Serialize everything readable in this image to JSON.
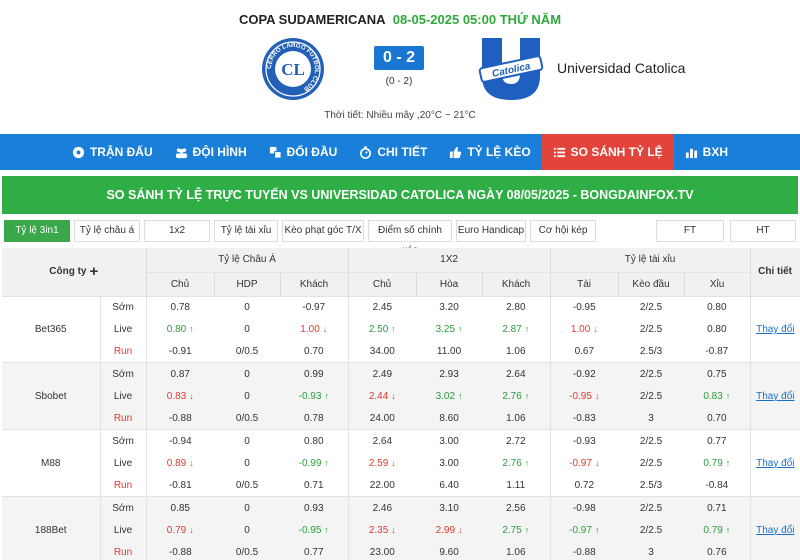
{
  "match": {
    "league": "COPA SUDAMERICANA",
    "datetime": "08-05-2025 05:00 THỨ NĂM",
    "score": "0 - 2",
    "half_score": "(0 - 2)",
    "home_crest_text": "CERRO LARGO FÚTBOL CLUB",
    "home_crest_initials": "CL",
    "away_crest_text": "Catolica",
    "away_name": "Universidad Catolica",
    "weather": "Thời tiết: Nhiều mây ,20°C ~ 21°C"
  },
  "tabs": [
    {
      "label": "TRẬN ĐẤU",
      "icon": "soccer-ball-icon",
      "active": false
    },
    {
      "label": "ĐỘI HÌNH",
      "icon": "team-icon",
      "active": false
    },
    {
      "label": "ĐỐI ĐẦU",
      "icon": "versus-icon",
      "active": false
    },
    {
      "label": "CHI TIẾT",
      "icon": "stopwatch-icon",
      "active": false
    },
    {
      "label": "TỶ LỆ KÈO",
      "icon": "thumb-up-icon",
      "active": false
    },
    {
      "label": "SO SÁNH TỶ LỆ",
      "icon": "compare-list-icon",
      "active": true
    },
    {
      "label": "BXH",
      "icon": "bar-chart-icon",
      "active": false
    }
  ],
  "banner": "SO SÁNH TỶ LỆ TRỰC TUYẾN VS UNIVERSIDAD CATOLICA NGÀY 08/05/2025 - BONGDAINFOX.TV",
  "filters": [
    {
      "label": "Tỷ lệ 3in1",
      "active": true
    },
    {
      "label": "Tỷ lệ châu á",
      "active": false
    },
    {
      "label": "1x2",
      "active": false
    },
    {
      "label": "Tỷ lệ tài xỉu",
      "active": false
    },
    {
      "label": "Kèo phạt góc T/X",
      "active": false
    },
    {
      "label": "Điểm số chính xác",
      "active": false
    },
    {
      "label": "Euro Handicap",
      "active": false
    },
    {
      "label": "Cơ hội kép",
      "active": false
    },
    {
      "label": "FT",
      "active": false
    },
    {
      "label": "HT",
      "active": false
    }
  ],
  "table": {
    "company_header": "Công ty",
    "plus_symbol": "+",
    "detail_header": "Chi tiết",
    "groups": [
      "Tỷ lệ Châu Á",
      "1X2",
      "Tỷ lệ tài xỉu"
    ],
    "subheaders": [
      "Chủ",
      "HDP",
      "Khách",
      "Chủ",
      "Hòa",
      "Khách",
      "Tài",
      "Kèo đầu",
      "Xỉu"
    ],
    "change_label": "Thay đổi",
    "bookmakers": [
      {
        "name": "Bet365",
        "rows": [
          {
            "type": "Sớm",
            "cells": [
              [
                "0.78",
                ""
              ],
              [
                "0",
                ""
              ],
              [
                "-0.97",
                ""
              ],
              [
                "2.45",
                ""
              ],
              [
                "3.20",
                ""
              ],
              [
                "2.80",
                ""
              ],
              [
                "-0.95",
                ""
              ],
              [
                "2/2.5",
                ""
              ],
              [
                "0.80",
                ""
              ]
            ]
          },
          {
            "type": "Live",
            "cells": [
              [
                "0.80",
                "up"
              ],
              [
                "0",
                ""
              ],
              [
                "1.00",
                "down"
              ],
              [
                "2.50",
                "up"
              ],
              [
                "3.25",
                "up"
              ],
              [
                "2.87",
                "up"
              ],
              [
                "1.00",
                "down"
              ],
              [
                "2/2.5",
                ""
              ],
              [
                "0.80",
                ""
              ]
            ]
          },
          {
            "type": "Run",
            "cells": [
              [
                "-0.91",
                ""
              ],
              [
                "0/0.5",
                ""
              ],
              [
                "0.70",
                ""
              ],
              [
                "34.00",
                ""
              ],
              [
                "11.00",
                ""
              ],
              [
                "1.06",
                ""
              ],
              [
                "0.67",
                ""
              ],
              [
                "2.5/3",
                ""
              ],
              [
                "-0.87",
                ""
              ]
            ]
          }
        ]
      },
      {
        "name": "Sbobet",
        "rows": [
          {
            "type": "Sớm",
            "cells": [
              [
                "0.87",
                ""
              ],
              [
                "0",
                ""
              ],
              [
                "0.99",
                ""
              ],
              [
                "2.49",
                ""
              ],
              [
                "2.93",
                ""
              ],
              [
                "2.64",
                ""
              ],
              [
                "-0.92",
                ""
              ],
              [
                "2/2.5",
                ""
              ],
              [
                "0.75",
                ""
              ]
            ]
          },
          {
            "type": "Live",
            "cells": [
              [
                "0.83",
                "down"
              ],
              [
                "0",
                ""
              ],
              [
                "-0.93",
                "up"
              ],
              [
                "2.44",
                "down"
              ],
              [
                "3.02",
                "up"
              ],
              [
                "2.76",
                "up"
              ],
              [
                "-0.95",
                "down"
              ],
              [
                "2/2.5",
                ""
              ],
              [
                "0.83",
                "up"
              ]
            ]
          },
          {
            "type": "Run",
            "cells": [
              [
                "-0.88",
                ""
              ],
              [
                "0/0.5",
                ""
              ],
              [
                "0.78",
                ""
              ],
              [
                "24.00",
                ""
              ],
              [
                "8.60",
                ""
              ],
              [
                "1.06",
                ""
              ],
              [
                "-0.83",
                ""
              ],
              [
                "3",
                ""
              ],
              [
                "0.70",
                ""
              ]
            ]
          }
        ]
      },
      {
        "name": "M88",
        "rows": [
          {
            "type": "Sớm",
            "cells": [
              [
                "-0.94",
                ""
              ],
              [
                "0",
                ""
              ],
              [
                "0.80",
                ""
              ],
              [
                "2.64",
                ""
              ],
              [
                "3.00",
                ""
              ],
              [
                "2.72",
                ""
              ],
              [
                "-0.93",
                ""
              ],
              [
                "2/2.5",
                ""
              ],
              [
                "0.77",
                ""
              ]
            ]
          },
          {
            "type": "Live",
            "cells": [
              [
                "0.89",
                "down"
              ],
              [
                "0",
                ""
              ],
              [
                "-0.99",
                "up"
              ],
              [
                "2.59",
                "down"
              ],
              [
                "3.00",
                ""
              ],
              [
                "2.76",
                "up"
              ],
              [
                "-0.97",
                "down"
              ],
              [
                "2/2.5",
                ""
              ],
              [
                "0.79",
                "up"
              ]
            ]
          },
          {
            "type": "Run",
            "cells": [
              [
                "-0.81",
                ""
              ],
              [
                "0/0.5",
                ""
              ],
              [
                "0.71",
                ""
              ],
              [
                "22.00",
                ""
              ],
              [
                "6.40",
                ""
              ],
              [
                "1.11",
                ""
              ],
              [
                "0.72",
                ""
              ],
              [
                "2.5/3",
                ""
              ],
              [
                "-0.84",
                ""
              ]
            ]
          }
        ]
      },
      {
        "name": "188Bet",
        "rows": [
          {
            "type": "Sớm",
            "cells": [
              [
                "0.85",
                ""
              ],
              [
                "0",
                ""
              ],
              [
                "0.93",
                ""
              ],
              [
                "2.46",
                ""
              ],
              [
                "3.10",
                ""
              ],
              [
                "2.56",
                ""
              ],
              [
                "-0.98",
                ""
              ],
              [
                "2/2.5",
                ""
              ],
              [
                "0.71",
                ""
              ]
            ]
          },
          {
            "type": "Live",
            "cells": [
              [
                "0.79",
                "down"
              ],
              [
                "0",
                ""
              ],
              [
                "-0.95",
                "up"
              ],
              [
                "2.35",
                "down"
              ],
              [
                "2.99",
                "down"
              ],
              [
                "2.75",
                "up"
              ],
              [
                "-0.97",
                "up"
              ],
              [
                "2/2.5",
                ""
              ],
              [
                "0.79",
                "up"
              ]
            ]
          },
          {
            "type": "Run",
            "cells": [
              [
                "-0.88",
                ""
              ],
              [
                "0/0.5",
                ""
              ],
              [
                "0.77",
                ""
              ],
              [
                "23.00",
                ""
              ],
              [
                "9.60",
                ""
              ],
              [
                "1.06",
                ""
              ],
              [
                "-0.88",
                ""
              ],
              [
                "3",
                ""
              ],
              [
                "0.76",
                ""
              ]
            ]
          }
        ]
      }
    ]
  },
  "colors": {
    "tab_bar": "#1a7fd9",
    "tab_active": "#e2433b",
    "banner": "#2eae45",
    "score_box": "#1976d2",
    "date_green": "#2eaa3a",
    "up": "#2a9d3d",
    "down": "#e03b32",
    "link": "#1a6fc9"
  }
}
